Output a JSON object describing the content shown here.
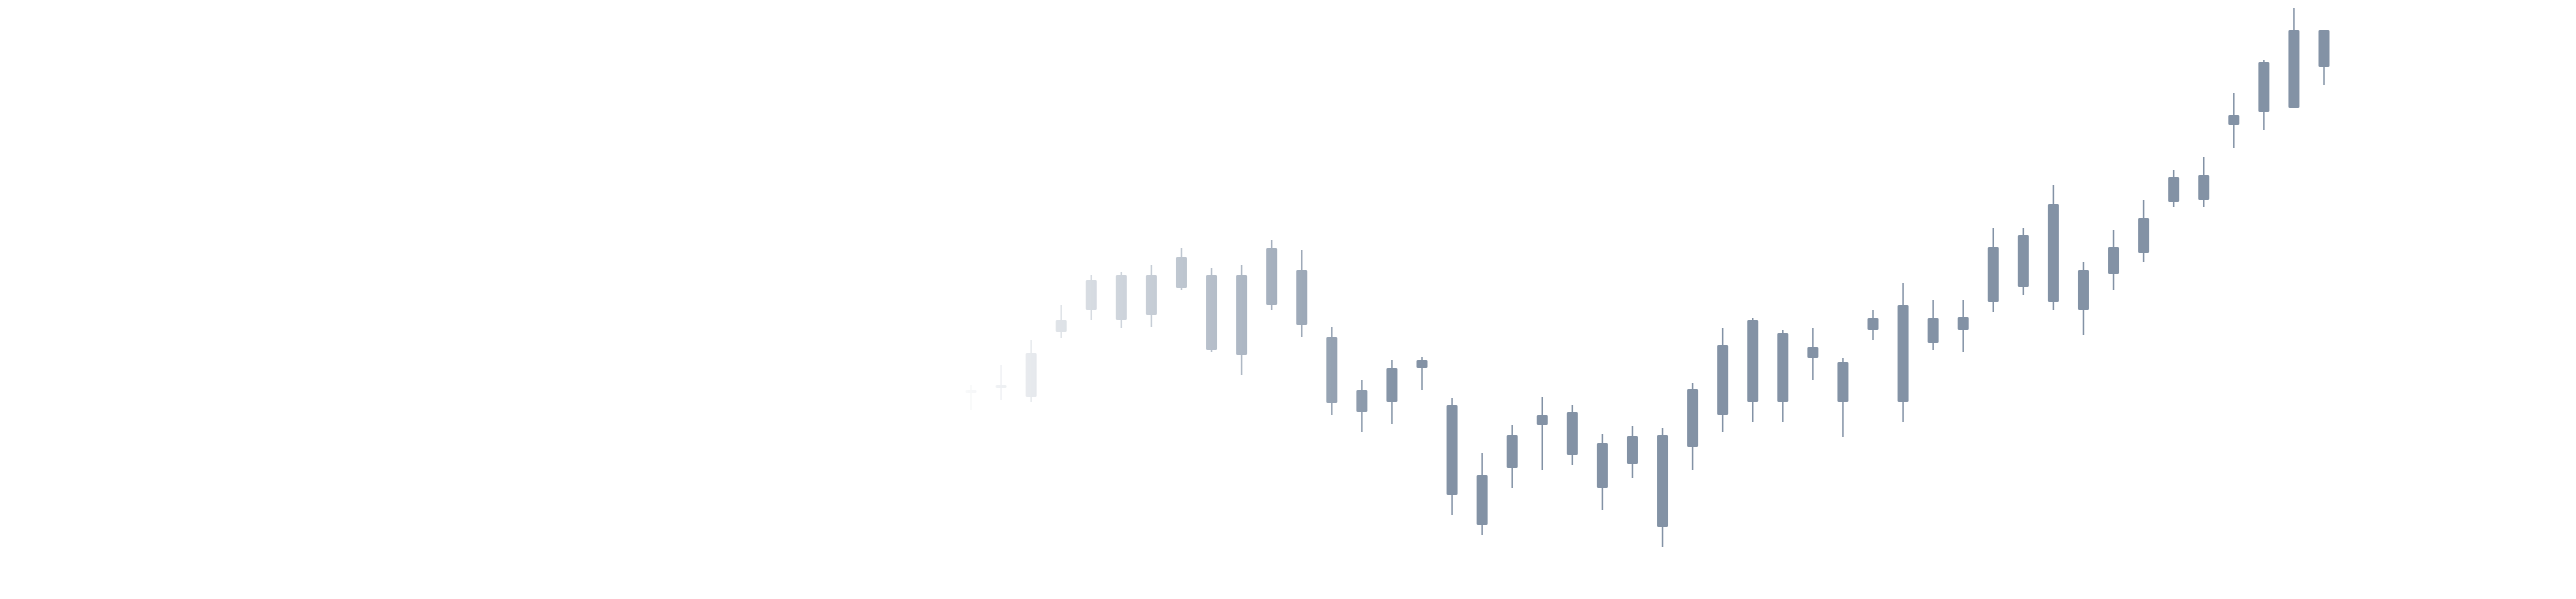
{
  "chart_data": {
    "type": "candlestick",
    "color": "#8392a5",
    "ylim": [
      0,
      599
    ],
    "open": [
      206,
      211,
      202,
      267,
      289,
      279,
      284,
      311,
      324,
      244,
      294,
      329,
      262,
      209,
      197,
      231,
      194,
      124,
      131,
      174,
      144,
      156,
      135,
      164,
      152,
      184,
      197,
      266,
      241,
      237,
      269,
      197,
      281,
      269,
      297,
      312,
      297,
      329,
      325,
      346,
      397,
      399,
      474,
      487,
      491,
      569
    ],
    "high": [
      214,
      234,
      259,
      294,
      324,
      327,
      334,
      351,
      331,
      334,
      359,
      349,
      272,
      219,
      239,
      242,
      201,
      146,
      174,
      202,
      194,
      165,
      173,
      171,
      216,
      271,
      281,
      269,
      271,
      241,
      289,
      316,
      299,
      299,
      371,
      371,
      414,
      337,
      369,
      399,
      429,
      442,
      506,
      539,
      591,
      569
    ],
    "low": [
      189,
      199,
      197,
      261,
      279,
      271,
      272,
      309,
      247,
      224,
      289,
      262,
      184,
      167,
      175,
      209,
      84,
      64,
      111,
      129,
      134,
      89,
      121,
      52,
      129,
      167,
      177,
      177,
      219,
      162,
      259,
      177,
      249,
      247,
      287,
      304,
      289,
      264,
      309,
      337,
      392,
      392,
      451,
      469,
      491,
      514
    ],
    "close": [
      209,
      214,
      246,
      279,
      319,
      324,
      324,
      342,
      249,
      324,
      351,
      274,
      196,
      187,
      231,
      239,
      104,
      74,
      164,
      184,
      187,
      111,
      163,
      72,
      210,
      254,
      279,
      197,
      252,
      197,
      281,
      294,
      256,
      282,
      352,
      364,
      395,
      289,
      352,
      381,
      422,
      424,
      484,
      537,
      569,
      532
    ]
  }
}
